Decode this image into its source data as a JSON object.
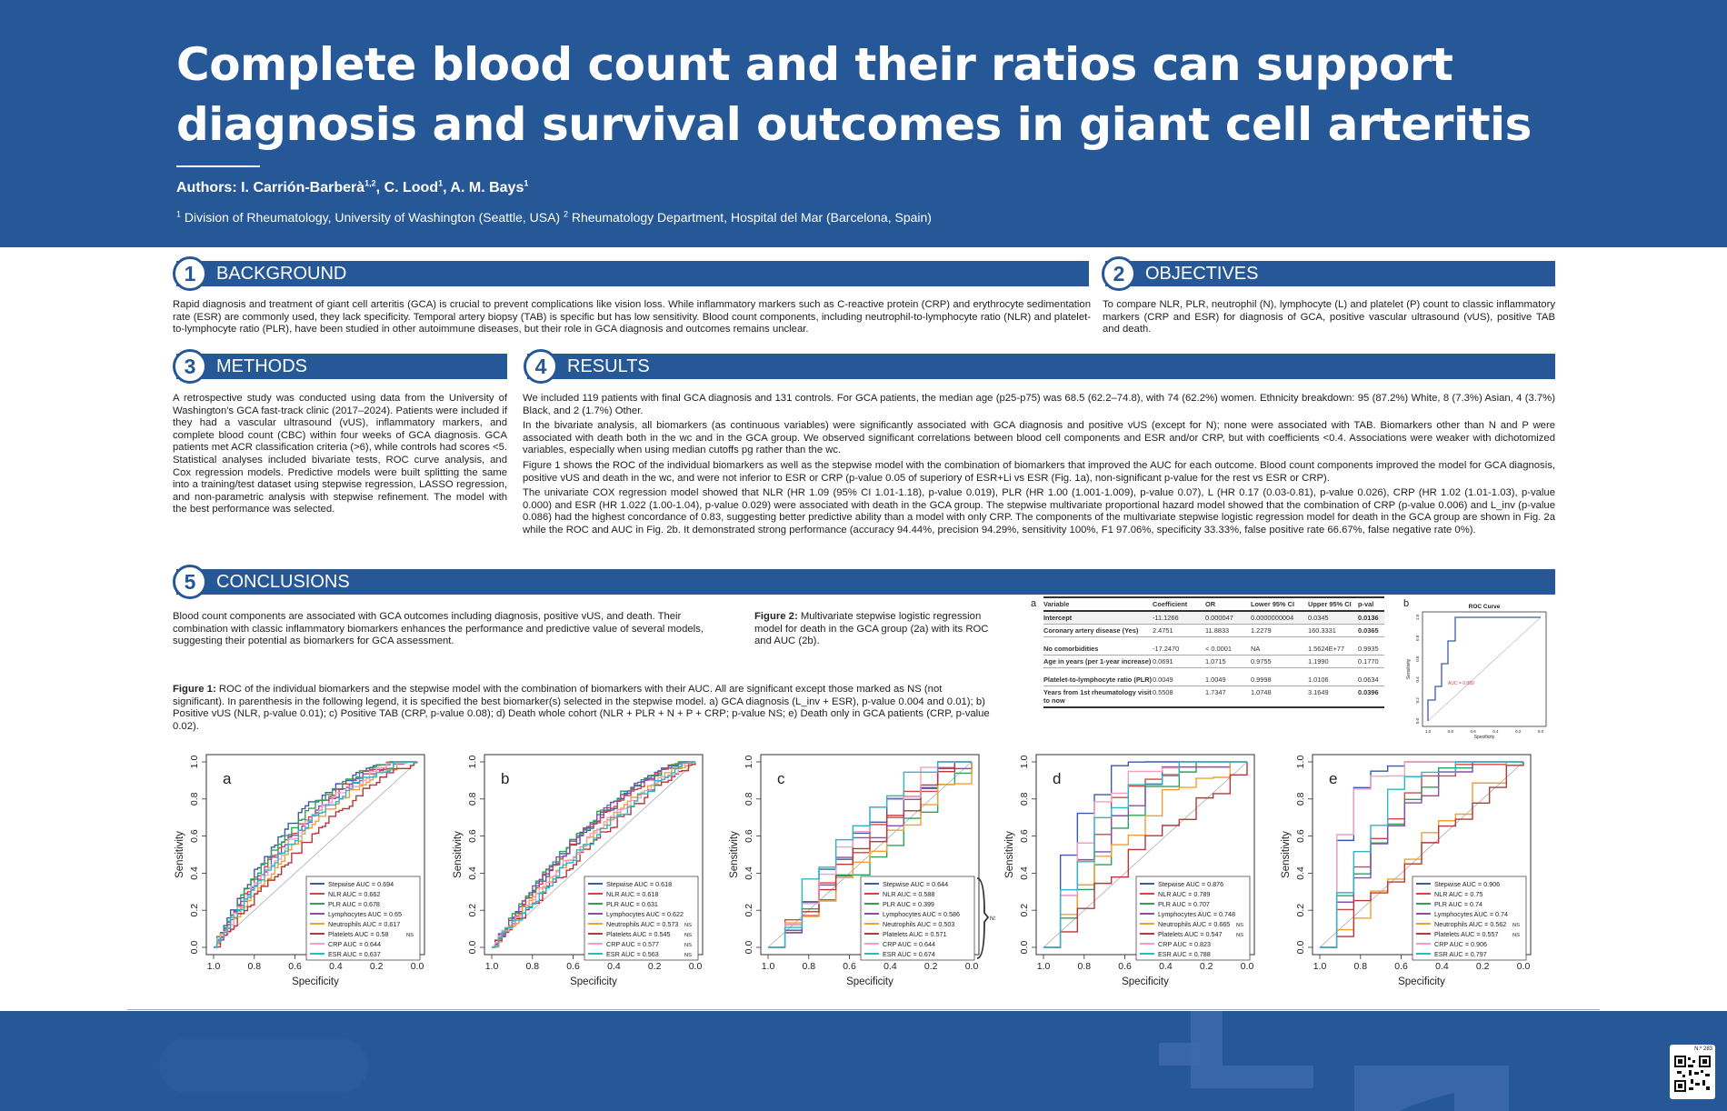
{
  "header": {
    "title_line1": "Complete blood count and their ratios can support",
    "title_line2": "diagnosis and survival outcomes in giant cell arteritis",
    "authors_label": "Authors: ",
    "author1": "I. Carrión-Barberà",
    "author1_sup": "1,2",
    "author2": "C. Lood",
    "author2_sup": "1",
    "author3": "A. M. Bays",
    "author3_sup": "1",
    "affil_sup1": "1",
    "affil1": " Division of Rheumatology, University of Washington (Seattle, USA) ",
    "affil_sup2": "2",
    "affil2": " Rheumatology Department, Hospital del Mar (Barcelona, Spain)"
  },
  "sections": {
    "background": {
      "num": "1",
      "title": "BACKGROUND",
      "text": "Rapid diagnosis and treatment of giant cell arteritis (GCA) is crucial to prevent complications like vision loss. While inflammatory markers such as C-reactive protein (CRP) and erythrocyte sedimentation rate (ESR) are commonly used, they lack specificity. Temporal artery biopsy (TAB) is specific but has low sensitivity. Blood count components, including neutrophil-to-lymphocyte ratio (NLR) and platelet-to-lymphocyte ratio (PLR), have been studied in other autoimmune diseases, but their role in GCA diagnosis and outcomes remains unclear."
    },
    "objectives": {
      "num": "2",
      "title": "OBJECTIVES",
      "text": "To compare NLR, PLR, neutrophil (N), lymphocyte (L) and platelet (P) count to classic inflammatory markers (CRP and ESR) for diagnosis of GCA, positive vascular ultrasound (vUS), positive TAB and death."
    },
    "methods": {
      "num": "3",
      "title": "METHODS",
      "text": "A retrospective study was conducted using data from the University of Washington's GCA fast-track clinic (2017–2024). Patients were included if they had a vascular ultrasound (vUS), inflammatory markers, and complete blood count (CBC) within four weeks of GCA diagnosis. GCA patients met ACR classification criteria (>6), while controls had scores <5. Statistical analyses included bivariate tests, ROC curve analysis, and Cox regression models. Predictive models were built splitting the same into a training/test dataset using stepwise regression, LASSO regression, and non-parametric analysis with stepwise refinement. The model with the best performance was selected."
    },
    "results": {
      "num": "4",
      "title": "RESULTS",
      "p1": "We included 119 patients with final GCA diagnosis and 131 controls. For GCA patients, the median age (p25-p75) was 68.5 (62.2–74.8), with 74 (62.2%) women. Ethnicity breakdown: 95 (87.2%) White, 8 (7.3%) Asian, 4 (3.7%) Black, and 2 (1.7%) Other.",
      "p2": "In the bivariate analysis, all biomarkers (as continuous variables) were significantly associated with GCA diagnosis and positive vUS (except for N); none were associated with TAB. Biomarkers other than N and P were associated with death both in the wc and in the GCA group. We observed significant correlations between blood cell components and ESR and/or CRP, but with coefficients <0.4. Associations were weaker with dichotomized variables, especially when using median cutoffs pg rather than the wc.",
      "p3": "Figure 1 shows the ROC of the individual biomarkers as well as the stepwise model with the combination of biomarkers that improved the AUC for each outcome. Blood count components improved the model for GCA diagnosis, positive vUS and death in the wc, and were not inferior to ESR or CRP (p-value 0.05 of superiory of ESR+Li vs ESR (Fig. 1a), non-significant p-value for the rest vs ESR or CRP).",
      "p4": "The univariate COX regression model showed that NLR (HR 1.09 (95% CI 1.01-1.18), p-value 0.019), PLR (HR 1.00 (1.001-1.009), p-value 0.07), L (HR 0.17 (0.03-0.81), p-value 0.026), CRP (HR 1.02 (1.01-1.03), p-value 0.000) and ESR (HR 1.022 (1.00-1.04), p-value 0.029) were associated with death in the GCA group. The stepwise multivariate proportional hazard model showed that the combination of CRP (p-value 0.006) and L_inv (p-value 0.086) had the highest concordance of 0.83, suggesting better predictive ability than a model with only CRP. The components of the multivariate stepwise logistic regression model for death in the GCA group are shown in Fig. 2a while the ROC and AUC in Fig. 2b. It demonstrated strong performance (accuracy 94.44%, precision 94.29%, sensitivity 100%, F1 97.06%, specificity 33.33%, false positive rate 66.67%, false negative rate 0%)."
    },
    "conclusions": {
      "num": "5",
      "title": "CONCLUSIONS",
      "text": "Blood count components are associated with GCA outcomes including diagnosis, positive vUS, and death. Their combination with classic inflammatory biomarkers enhances the performance and predictive value of several models, suggesting their potential as biomarkers for GCA assessment."
    }
  },
  "figure2": {
    "label": "Figure 2:",
    "caption": " Multivariate stepwise logistic regression model for death in the GCA group (2a) with its ROC and AUC (2b)."
  },
  "figure1": {
    "label": "Figure 1:",
    "caption": " ROC of the individual biomarkers and the stepwise model with the combination of biomarkers with their AUC. All are significant except those marked as NS (not significant). In parenthesis in the following legend, it is specified the best biomarker(s) selected in the stepwise model. a) GCA diagnosis (L_inv + ESR), p-value 0.004 and 0.01); b) Positive vUS (NLR, p-value 0.01); c) Positive TAB (CRP, p-value 0.08); d) Death whole cohort (NLR + PLR + N + P + CRP; p-value NS; e) Death only in GCA patients (CRP, p-value 0.02)."
  },
  "table": {
    "panel_letter": "a",
    "headers": [
      "Variable",
      "Coefficient",
      "OR",
      "Lower 95% CI",
      "Upper 95% CI",
      "p-val"
    ],
    "rows": [
      [
        "Intercept",
        "-11.1266",
        "0.000047",
        "0.0000000004",
        "0.0345",
        "0.0136"
      ],
      [
        "Coronary artery disease (Yes)",
        "2.4751",
        "11.8833",
        "1.2279",
        "160.3331",
        "0.0365"
      ],
      [
        "No comorbidities",
        "-17.2470",
        "< 0.0001",
        "NA",
        "1.5624E+77",
        "0.9935"
      ],
      [
        "Age in years (per 1-year increase)",
        "0.0691",
        "1.0715",
        "0.9755",
        "1.1990",
        "0.1770"
      ],
      [
        "Platelet-to-lymphocyte ratio (PLR)",
        "0.0049",
        "1.0049",
        "0.9998",
        "1.0106",
        "0.0634"
      ],
      [
        "Years from 1st rheumatology visit to now",
        "0.5508",
        "1.7347",
        "1.0748",
        "3.1649",
        "0.0396"
      ]
    ]
  },
  "fig2b": {
    "panel_letter": "b",
    "title": "ROC Curve",
    "xlabel": "Specificity",
    "ylabel": "Sensitivity",
    "auc_label": "AUC = 0.889"
  },
  "colors": {
    "Stepwise": "#3b5aa8",
    "NLR": "#d64545",
    "PLR": "#2aa35a",
    "Lymphocytes": "#8a4fa8",
    "Neutrophils": "#f0a030",
    "Platelets": "#b5383a",
    "CRP": "#f2a0c0",
    "ESR": "#2ab8c8"
  },
  "qr": {
    "label": "N.º 283"
  },
  "chart_data": [
    {
      "type": "line",
      "panel": "a",
      "xlabel": "Specificity",
      "ylabel": "Sensitivity",
      "xlim": [
        1.0,
        0.0
      ],
      "ylim": [
        0.0,
        1.0
      ],
      "xticks": [
        "1.0",
        "0.8",
        "0.6",
        "0.4",
        "0.2",
        "0.0"
      ],
      "yticks": [
        "0.0",
        "0.2",
        "0.4",
        "0.6",
        "0.8",
        "1.0"
      ],
      "legend_pos": "bottom-right",
      "series": [
        {
          "name": "Stepwise",
          "auc": "0.694",
          "ns": ""
        },
        {
          "name": "NLR",
          "auc": "0.662",
          "ns": ""
        },
        {
          "name": "PLR",
          "auc": "0.678",
          "ns": ""
        },
        {
          "name": "Lymphocytes",
          "auc": "0.65",
          "ns": ""
        },
        {
          "name": "Neutrophils",
          "auc": "0.617",
          "ns": ""
        },
        {
          "name": "Platelets",
          "auc": "0.58",
          "ns": "NS"
        },
        {
          "name": "CRP",
          "auc": "0.644",
          "ns": ""
        },
        {
          "name": "ESR",
          "auc": "0.637",
          "ns": ""
        }
      ]
    },
    {
      "type": "line",
      "panel": "b",
      "xlabel": "Specificity",
      "ylabel": "Sensitivity",
      "xlim": [
        1.0,
        0.0
      ],
      "ylim": [
        0.0,
        1.0
      ],
      "xticks": [
        "1.0",
        "0.8",
        "0.6",
        "0.4",
        "0.2",
        "0.0"
      ],
      "yticks": [
        "0.0",
        "0.2",
        "0.4",
        "0.6",
        "0.8",
        "1.0"
      ],
      "legend_pos": "bottom-right",
      "series": [
        {
          "name": "Stepwise",
          "auc": "0.618",
          "ns": ""
        },
        {
          "name": "NLR",
          "auc": "0.618",
          "ns": ""
        },
        {
          "name": "PLR",
          "auc": "0.631",
          "ns": ""
        },
        {
          "name": "Lymphocytes",
          "auc": "0.622",
          "ns": ""
        },
        {
          "name": "Neutrophils",
          "auc": "0.573",
          "ns": "NS"
        },
        {
          "name": "Platelets",
          "auc": "0.545",
          "ns": "NS"
        },
        {
          "name": "CRP",
          "auc": "0.577",
          "ns": "NS"
        },
        {
          "name": "ESR",
          "auc": "0.563",
          "ns": "NS"
        }
      ]
    },
    {
      "type": "line",
      "panel": "c",
      "xlabel": "Specificity",
      "ylabel": "Sensitivity",
      "xlim": [
        1.0,
        0.0
      ],
      "ylim": [
        0.0,
        1.0
      ],
      "xticks": [
        "1.0",
        "0.8",
        "0.6",
        "0.4",
        "0.2",
        "0.0"
      ],
      "yticks": [
        "0.0",
        "0.2",
        "0.4",
        "0.6",
        "0.8",
        "1.0"
      ],
      "legend_pos": "bottom-right",
      "group_ns": "NS",
      "series": [
        {
          "name": "Stepwise",
          "auc": "0.644",
          "ns": ""
        },
        {
          "name": "NLR",
          "auc": "0.588",
          "ns": ""
        },
        {
          "name": "PLR",
          "auc": "0.399",
          "ns": ""
        },
        {
          "name": "Lymphocytes",
          "auc": "0.586",
          "ns": ""
        },
        {
          "name": "Neutrophils",
          "auc": "0.503",
          "ns": ""
        },
        {
          "name": "Platelets",
          "auc": "0.571",
          "ns": ""
        },
        {
          "name": "CRP",
          "auc": "0.644",
          "ns": ""
        },
        {
          "name": "ESR",
          "auc": "0.674",
          "ns": ""
        }
      ]
    },
    {
      "type": "line",
      "panel": "d",
      "xlabel": "Specificity",
      "ylabel": "Sensitivity",
      "xlim": [
        1.0,
        0.0
      ],
      "ylim": [
        0.0,
        1.0
      ],
      "xticks": [
        "1.0",
        "0.8",
        "0.6",
        "0.4",
        "0.2",
        "0.0"
      ],
      "yticks": [
        "0.0",
        "0.2",
        "0.4",
        "0.6",
        "0.8",
        "1.0"
      ],
      "legend_pos": "bottom-right",
      "series": [
        {
          "name": "Stepwise",
          "auc": "0.876",
          "ns": ""
        },
        {
          "name": "NLR",
          "auc": "0.789",
          "ns": ""
        },
        {
          "name": "PLR",
          "auc": "0.707",
          "ns": ""
        },
        {
          "name": "Lymphocytes",
          "auc": "0.748",
          "ns": ""
        },
        {
          "name": "Neutrophils",
          "auc": "0.665",
          "ns": "NS"
        },
        {
          "name": "Platelets",
          "auc": "0.547",
          "ns": "NS"
        },
        {
          "name": "CRP",
          "auc": "0.823",
          "ns": ""
        },
        {
          "name": "ESR",
          "auc": "0.788",
          "ns": ""
        }
      ]
    },
    {
      "type": "line",
      "panel": "e",
      "xlabel": "Specificity",
      "ylabel": "Sensitivity",
      "xlim": [
        1.0,
        0.0
      ],
      "ylim": [
        0.0,
        1.0
      ],
      "xticks": [
        "1.0",
        "0.8",
        "0.6",
        "0.4",
        "0.2",
        "0.0"
      ],
      "yticks": [
        "0.0",
        "0.2",
        "0.4",
        "0.6",
        "0.8",
        "1.0"
      ],
      "legend_pos": "bottom-right",
      "series": [
        {
          "name": "Stepwise",
          "auc": "0.906",
          "ns": ""
        },
        {
          "name": "NLR",
          "auc": "0.75",
          "ns": ""
        },
        {
          "name": "PLR",
          "auc": "0.74",
          "ns": ""
        },
        {
          "name": "Lymphocytes",
          "auc": "0.74",
          "ns": ""
        },
        {
          "name": "Neutrophils",
          "auc": "0.562",
          "ns": "NS"
        },
        {
          "name": "Platelets",
          "auc": "0.557",
          "ns": "NS"
        },
        {
          "name": "CRP",
          "auc": "0.906",
          "ns": ""
        },
        {
          "name": "ESR",
          "auc": "0.797",
          "ns": ""
        }
      ]
    }
  ]
}
